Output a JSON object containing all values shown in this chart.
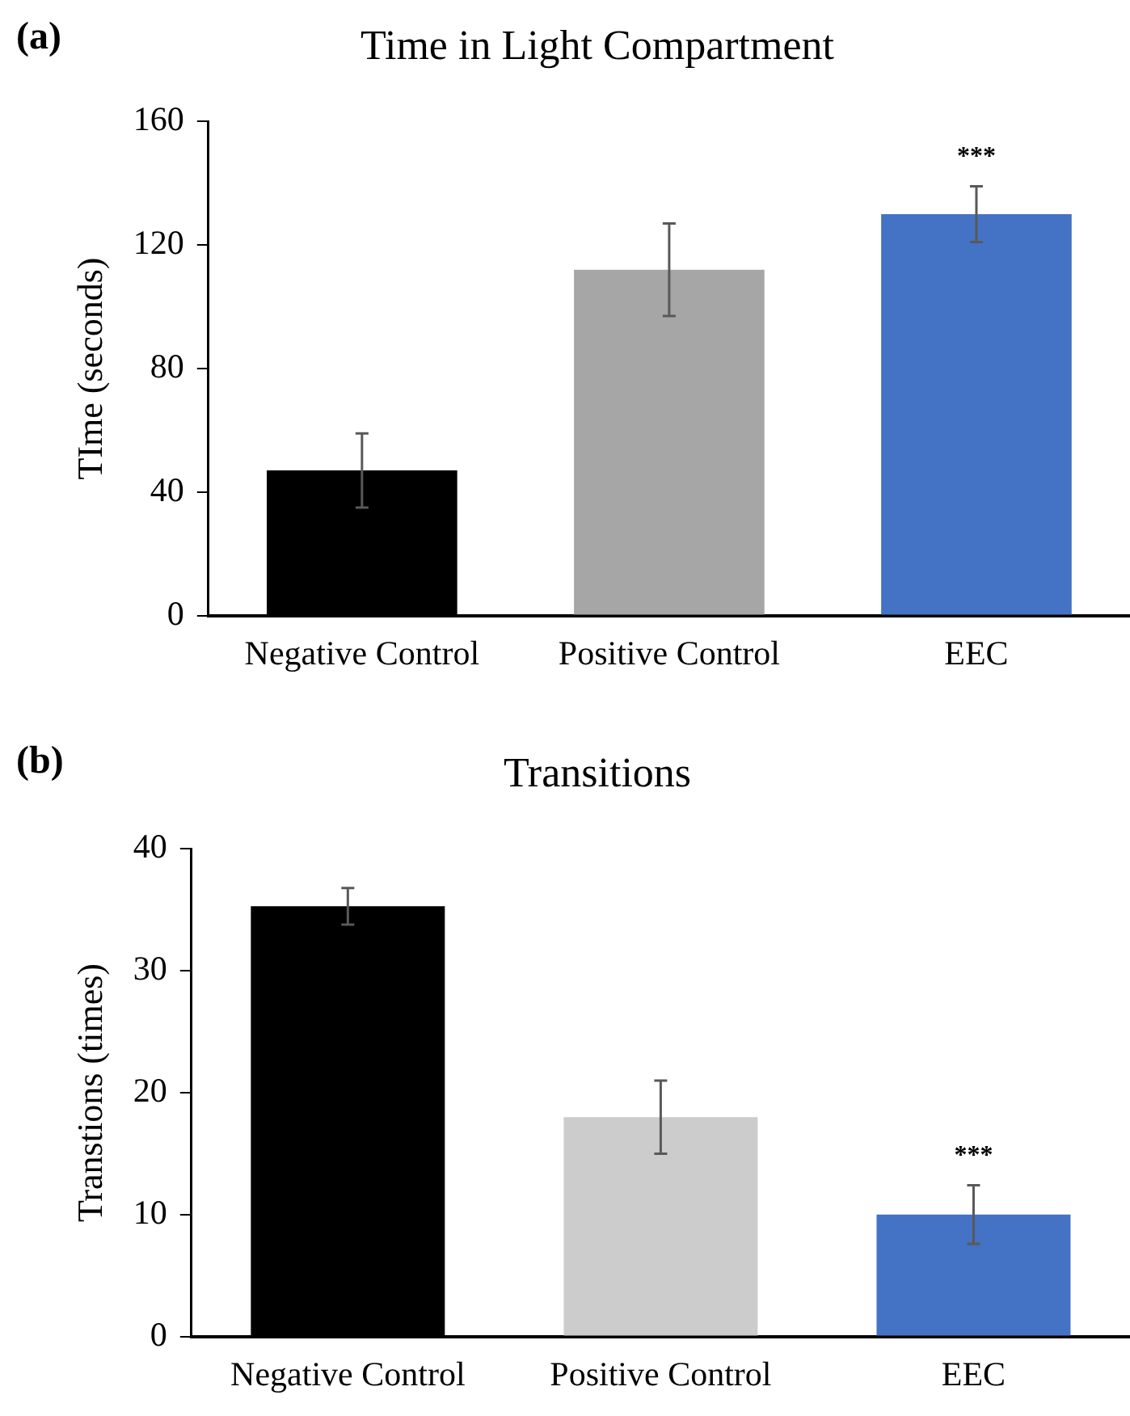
{
  "chart_data": [
    {
      "type": "bar",
      "title": "Time in Light Compartment",
      "ylabel": "TIme (seconds)",
      "categories": [
        "Negative Control",
        "Positive Control",
        "EEC"
      ],
      "values": [
        47,
        112,
        130
      ],
      "colors": [
        "#000000",
        "#a6a6a6",
        "#4472c4"
      ],
      "errors": [
        12,
        15,
        9
      ],
      "ylim": [
        0,
        160
      ],
      "yticks": [
        0,
        40,
        80,
        120,
        160
      ],
      "grid": false,
      "legend": false,
      "annotations": [
        "(a)",
        "***"
      ]
    },
    {
      "type": "bar",
      "title": "Transitions",
      "ylabel": "Transtions (times)",
      "categories": [
        "Negative Control",
        "Positive Control",
        "EEC"
      ],
      "values": [
        35.3,
        18,
        10
      ],
      "colors": [
        "#000000",
        "#cccccc",
        "#4472c4"
      ],
      "errors": [
        1.5,
        3,
        2.4
      ],
      "ylim": [
        0,
        40
      ],
      "yticks": [
        0,
        10,
        20,
        30,
        40
      ],
      "grid": false,
      "legend": false,
      "annotations": [
        "(b)",
        "***"
      ]
    }
  ]
}
